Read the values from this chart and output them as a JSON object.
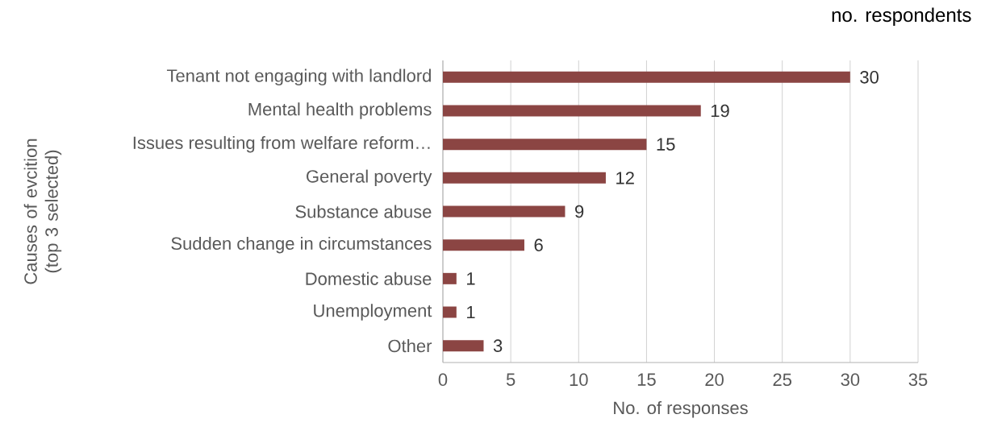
{
  "chart_data": {
    "type": "bar",
    "orientation": "horizontal",
    "title": "no. respondents",
    "xlabel": "No. of responses",
    "ylabel": "Causes of evcition (top 3 selected)",
    "categories": [
      "Tenant not engaging with landlord",
      "Mental health problems",
      "Issues resulting from welfare reform…",
      "General poverty",
      "Substance abuse",
      "Sudden change in circumstances",
      "Domestic abuse",
      "Unemployment",
      "Other"
    ],
    "values": [
      30,
      19,
      15,
      12,
      9,
      6,
      1,
      1,
      3
    ],
    "color": "#8b4543",
    "xlim": [
      0,
      35
    ],
    "xticks": [
      0,
      5,
      10,
      15,
      20,
      25,
      30,
      35
    ],
    "grid": "x",
    "data_labels": true
  }
}
